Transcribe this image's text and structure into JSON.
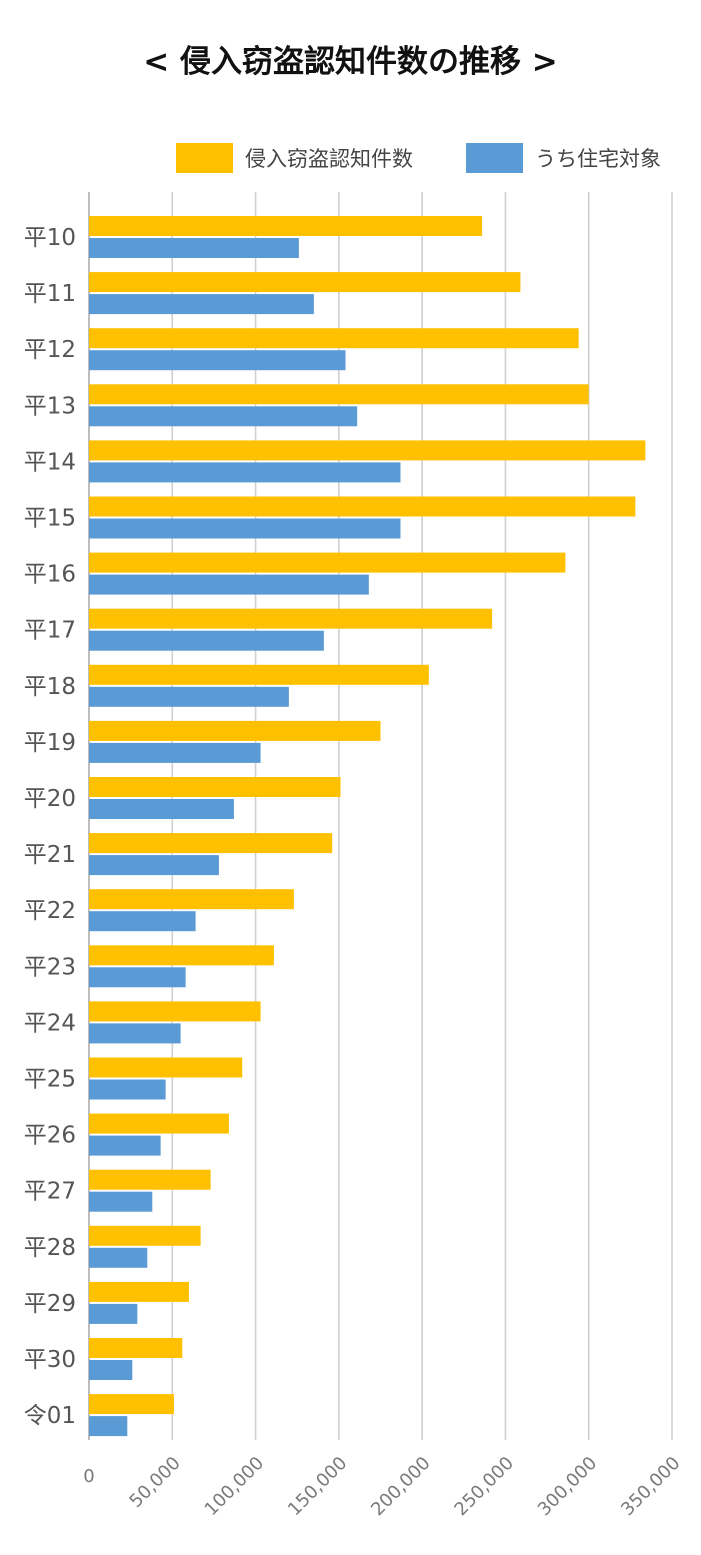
{
  "title": "< 侵入窃盗認知件数の推移 >",
  "legend": {
    "items": [
      {
        "label": "侵入窃盗認知件数",
        "color": "#FFC000"
      },
      {
        "label": "うち住宅対象",
        "color": "#5B9BD5"
      }
    ]
  },
  "chart_data": {
    "type": "bar",
    "orientation": "horizontal",
    "title": "< 侵入窃盗認知件数の推移 >",
    "xlabel": "",
    "ylabel": "",
    "xlim": [
      0,
      350000
    ],
    "x_ticks": [
      0,
      50000,
      100000,
      150000,
      200000,
      250000,
      300000,
      350000
    ],
    "x_tick_labels": [
      "0",
      "50,000",
      "100,000",
      "150,000",
      "200,000",
      "250,000",
      "300,000",
      "350,000"
    ],
    "grid": true,
    "legend_position": "top-right",
    "categories": [
      "平10",
      "平11",
      "平12",
      "平13",
      "平14",
      "平15",
      "平16",
      "平17",
      "平18",
      "平19",
      "平20",
      "平21",
      "平22",
      "平23",
      "平24",
      "平25",
      "平26",
      "平27",
      "平28",
      "平29",
      "平30",
      "令01"
    ],
    "series": [
      {
        "name": "侵入窃盗認知件数",
        "color": "#FFC000",
        "values": [
          236000,
          259000,
          294000,
          300000,
          334000,
          328000,
          286000,
          242000,
          204000,
          175000,
          151000,
          146000,
          123000,
          111000,
          103000,
          92000,
          84000,
          73000,
          67000,
          60000,
          56000,
          51000
        ]
      },
      {
        "name": "うち住宅対象",
        "color": "#5B9BD5",
        "values": [
          126000,
          135000,
          154000,
          161000,
          187000,
          187000,
          168000,
          141000,
          120000,
          103000,
          87000,
          78000,
          64000,
          58000,
          55000,
          46000,
          43000,
          38000,
          35000,
          29000,
          26000,
          23000
        ]
      }
    ]
  }
}
